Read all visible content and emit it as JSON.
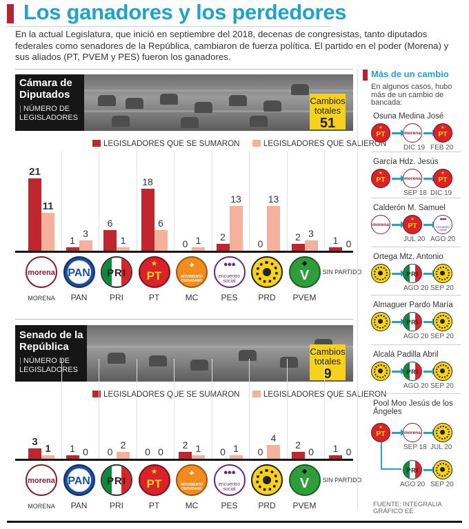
{
  "title": "Los ganadores y los perdedores",
  "intro": "En la actual Legislatura, que inició en septiembre del 2018, decenas de congresistas, tanto diputados federales como senadores de la República, cambiaron de fuerza política. El partido en el poder (Morena) y sus aliados (PT, PVEM y PES) fueron los ganadores.",
  "legend": {
    "joined": "LEGISLADORES QUE SE SUMARON",
    "left": "LEGISLADORES QUE SALIERON"
  },
  "colors": {
    "joined": "#c0262d",
    "left": "#f6b19d",
    "accent": "#1fa3c9",
    "yellow": "#f7d21a"
  },
  "parties": {
    "morena": {
      "label": "MORENA",
      "logo_text": "morena"
    },
    "pan": {
      "label": "PAN",
      "logo_text": "PAN"
    },
    "pri": {
      "label": "PRI",
      "logo_text": "PRI"
    },
    "pt": {
      "label": "PT",
      "logo_text": "PT"
    },
    "mc": {
      "label": "MC",
      "logo_text": "MOVIMIENTO CIUDADANO"
    },
    "pes": {
      "label": "PES",
      "logo_text": "encuentro social"
    },
    "prd": {
      "label": "PRD"
    },
    "pvem": {
      "label": "PVEM"
    },
    "sin": {
      "label": "SIN PARTIDO"
    }
  },
  "chart_data": [
    {
      "type": "bar",
      "title": "Cámara de Diputados",
      "subtitle": "NÚMERO DE LEGISLADORES",
      "changes_label": "Cambios totales",
      "changes_total": "51",
      "categories": [
        "MORENA",
        "PAN",
        "PRI",
        "PT",
        "MC",
        "PES",
        "PRD",
        "PVEM",
        "SIN PARTIDO"
      ],
      "series": [
        {
          "name": "LEGISLADORES QUE SE SUMARON",
          "values": [
            21,
            1,
            6,
            18,
            0,
            2,
            0,
            2,
            1
          ]
        },
        {
          "name": "LEGISLADORES QUE SALIERON",
          "values": [
            11,
            3,
            1,
            6,
            1,
            13,
            13,
            3,
            0
          ]
        }
      ],
      "ylim": [
        0,
        21
      ]
    },
    {
      "type": "bar",
      "title": "Senado de la República",
      "subtitle": "NÚMERO DE LEGISLADORES",
      "changes_label": "Cambios totales",
      "changes_total": "9",
      "categories": [
        "MORENA",
        "PAN",
        "PRI",
        "PT",
        "MC",
        "PES",
        "PRD",
        "PVEM",
        "SIN PARTIDO"
      ],
      "series": [
        {
          "name": "LEGISLADORES QUE SE SUMARON",
          "values": [
            3,
            1,
            0,
            0,
            2,
            0,
            0,
            2,
            1
          ]
        },
        {
          "name": "LEGISLADORES QUE SALIERON",
          "values": [
            1,
            0,
            2,
            0,
            1,
            1,
            4,
            0,
            0
          ]
        }
      ],
      "ylim": [
        0,
        21
      ]
    }
  ],
  "sidebar": {
    "title": "Más de un cambio",
    "intro": "En algunos casos, hubo más de un cambio de bancada:",
    "people": [
      {
        "name": "Osuna Medina José",
        "path": [
          "pt",
          "morena",
          "pt"
        ],
        "dates": [
          "DIC 19",
          "FEB 20"
        ]
      },
      {
        "name": "García Hdz. Jesús",
        "path": [
          "pt",
          "morena",
          "pt"
        ],
        "dates": [
          "SEP 18",
          "DIC 19"
        ]
      },
      {
        "name": "Calderón M. Samuel",
        "path": [
          "morena",
          "pt",
          "pes"
        ],
        "dates": [
          "JUL 20",
          "AGO 20"
        ]
      },
      {
        "name": "Ortega Mtz. Antonio",
        "path": [
          "prd",
          "pri",
          "prd"
        ],
        "dates": [
          "AGO 20",
          "SEP 20"
        ]
      },
      {
        "name": "Almaguer Pardo María",
        "path": [
          "prd",
          "pri",
          "prd"
        ],
        "dates": [
          "AGO 20",
          "SEP 20"
        ]
      },
      {
        "name": "Alcalá Padilla Abril",
        "path": [
          "prd",
          "pri",
          "prd"
        ],
        "dates": [
          "AGO 20",
          "SEP 20"
        ]
      },
      {
        "name": "Pool Moo Jesús de los Ángeles",
        "path": [
          "pt",
          "morena",
          "prd"
        ],
        "dates": [
          "SEP 18",
          "JUL 20"
        ],
        "path2": [
          "pri",
          "prd"
        ],
        "dates2": [
          "AGO 20",
          "SEP 20"
        ]
      }
    ]
  },
  "source": "FUENTE: INTEGRALIA GRÁFICO EE"
}
